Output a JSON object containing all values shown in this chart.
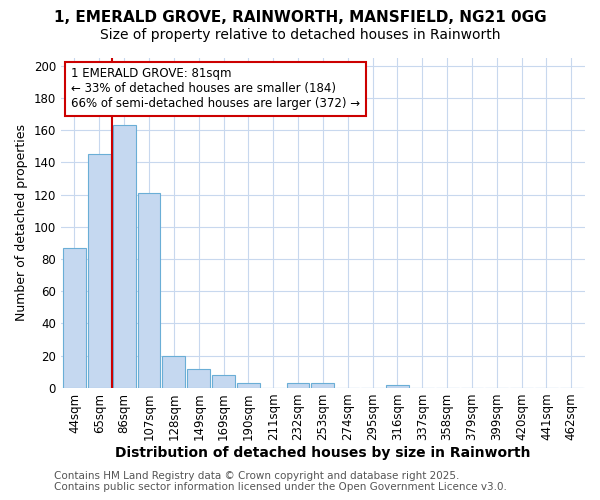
{
  "title_line1": "1, EMERALD GROVE, RAINWORTH, MANSFIELD, NG21 0GG",
  "title_line2": "Size of property relative to detached houses in Rainworth",
  "xlabel": "Distribution of detached houses by size in Rainworth",
  "ylabel": "Number of detached properties",
  "categories": [
    "44sqm",
    "65sqm",
    "86sqm",
    "107sqm",
    "128sqm",
    "149sqm",
    "169sqm",
    "190sqm",
    "211sqm",
    "232sqm",
    "253sqm",
    "274sqm",
    "295sqm",
    "316sqm",
    "337sqm",
    "358sqm",
    "379sqm",
    "399sqm",
    "420sqm",
    "441sqm",
    "462sqm"
  ],
  "values": [
    87,
    145,
    163,
    121,
    20,
    12,
    8,
    3,
    0,
    3,
    3,
    0,
    0,
    2,
    0,
    0,
    0,
    0,
    0,
    0,
    0
  ],
  "bar_color": "#c5d8f0",
  "bar_edge_color": "#6aaed6",
  "red_line_color": "#cc0000",
  "annotation_box_facecolor": "#ffffff",
  "annotation_box_edgecolor": "#cc0000",
  "annotation_line1": "1 EMERALD GROVE: 81sqm",
  "annotation_line2": "← 33% of detached houses are smaller (184)",
  "annotation_line3": "66% of semi-detached houses are larger (372) →",
  "footer_line1": "Contains HM Land Registry data © Crown copyright and database right 2025.",
  "footer_line2": "Contains public sector information licensed under the Open Government Licence v3.0.",
  "ylim": [
    0,
    205
  ],
  "yticks": [
    0,
    20,
    40,
    60,
    80,
    100,
    120,
    140,
    160,
    180,
    200
  ],
  "fig_bg_color": "#ffffff",
  "plot_bg_color": "#ffffff",
  "grid_color": "#c8d8ee",
  "title_fontsize": 11,
  "subtitle_fontsize": 10,
  "axis_label_fontsize": 10,
  "tick_fontsize": 8.5,
  "annotation_fontsize": 8.5,
  "footer_fontsize": 7.5,
  "red_line_x": 1.5
}
